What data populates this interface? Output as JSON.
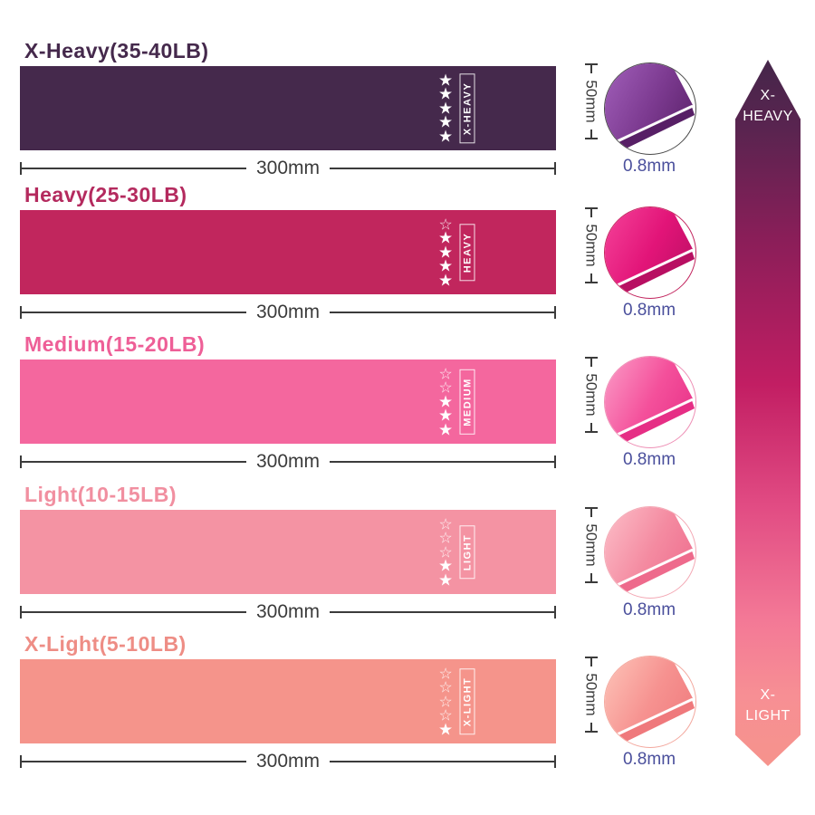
{
  "colors": {
    "background": "#ffffff",
    "dimension_text": "#3b3b3b",
    "dimension_line": "#3b3b3b",
    "thickness_text": "#4a4f9c",
    "star_color": "#ffffff"
  },
  "icons": {
    "star_filled_icon": "★",
    "star_outline_icon": "☆"
  },
  "dimensions": {
    "width_label": "300mm",
    "height_label": "50mm",
    "thickness_label": "0.8mm"
  },
  "bands": [
    {
      "title": "X-Heavy(35-40LB)",
      "label": "X-HEAVY",
      "rating": 5,
      "rating_max": 5,
      "color": "#45294c",
      "title_color": "#45294c",
      "circle": {
        "light": "#9b59b3",
        "main": "#7c3a90",
        "dark": "#571f66",
        "ring": "#4a4a4a"
      }
    },
    {
      "title": "Heavy(25-30LB)",
      "label": "HEAVY",
      "rating": 4,
      "rating_max": 5,
      "color": "#c1265d",
      "title_color": "#b42a5e",
      "circle": {
        "light": "#f23b94",
        "main": "#e21478",
        "dark": "#b80f62",
        "ring": "#c2255e"
      }
    },
    {
      "title": "Medium(15-20LB)",
      "label": "MEDIUM",
      "rating": 3,
      "rating_max": 5,
      "color": "#f4679e",
      "title_color": "#ee5f97",
      "circle": {
        "light": "#fa90c0",
        "main": "#f4509b",
        "dark": "#e62e85",
        "ring": "#ee8fb5"
      }
    },
    {
      "title": "Light(10-15LB)",
      "label": "LIGHT",
      "rating": 2,
      "rating_max": 5,
      "color": "#f493a3",
      "title_color": "#f18fa0",
      "circle": {
        "light": "#fbb6c2",
        "main": "#f48ba1",
        "dark": "#ee6a8c",
        "ring": "#f3a8b4"
      }
    },
    {
      "title": "X-Light(5-10LB)",
      "label": "X-LIGHT",
      "rating": 1,
      "rating_max": 5,
      "color": "#f5948b",
      "title_color": "#ee8d85",
      "circle": {
        "light": "#fcbcb2",
        "main": "#f69290",
        "dark": "#ef797c",
        "ring": "#f3a89e"
      }
    }
  ],
  "arrow": {
    "top_line1": "X-",
    "top_line2": "HEAVY",
    "bottom_line1": "X-",
    "bottom_line2": "LIGHT",
    "gradient": [
      [
        "#45264a",
        0
      ],
      [
        "#5a2450",
        10
      ],
      [
        "#8c1e59",
        26
      ],
      [
        "#c21e63",
        46
      ],
      [
        "#e14b83",
        63
      ],
      [
        "#f37896",
        79
      ],
      [
        "#f78f94",
        90
      ],
      [
        "#f6938c",
        100
      ]
    ]
  },
  "layout_tops": [
    46,
    205,
    370,
    536,
    701
  ]
}
